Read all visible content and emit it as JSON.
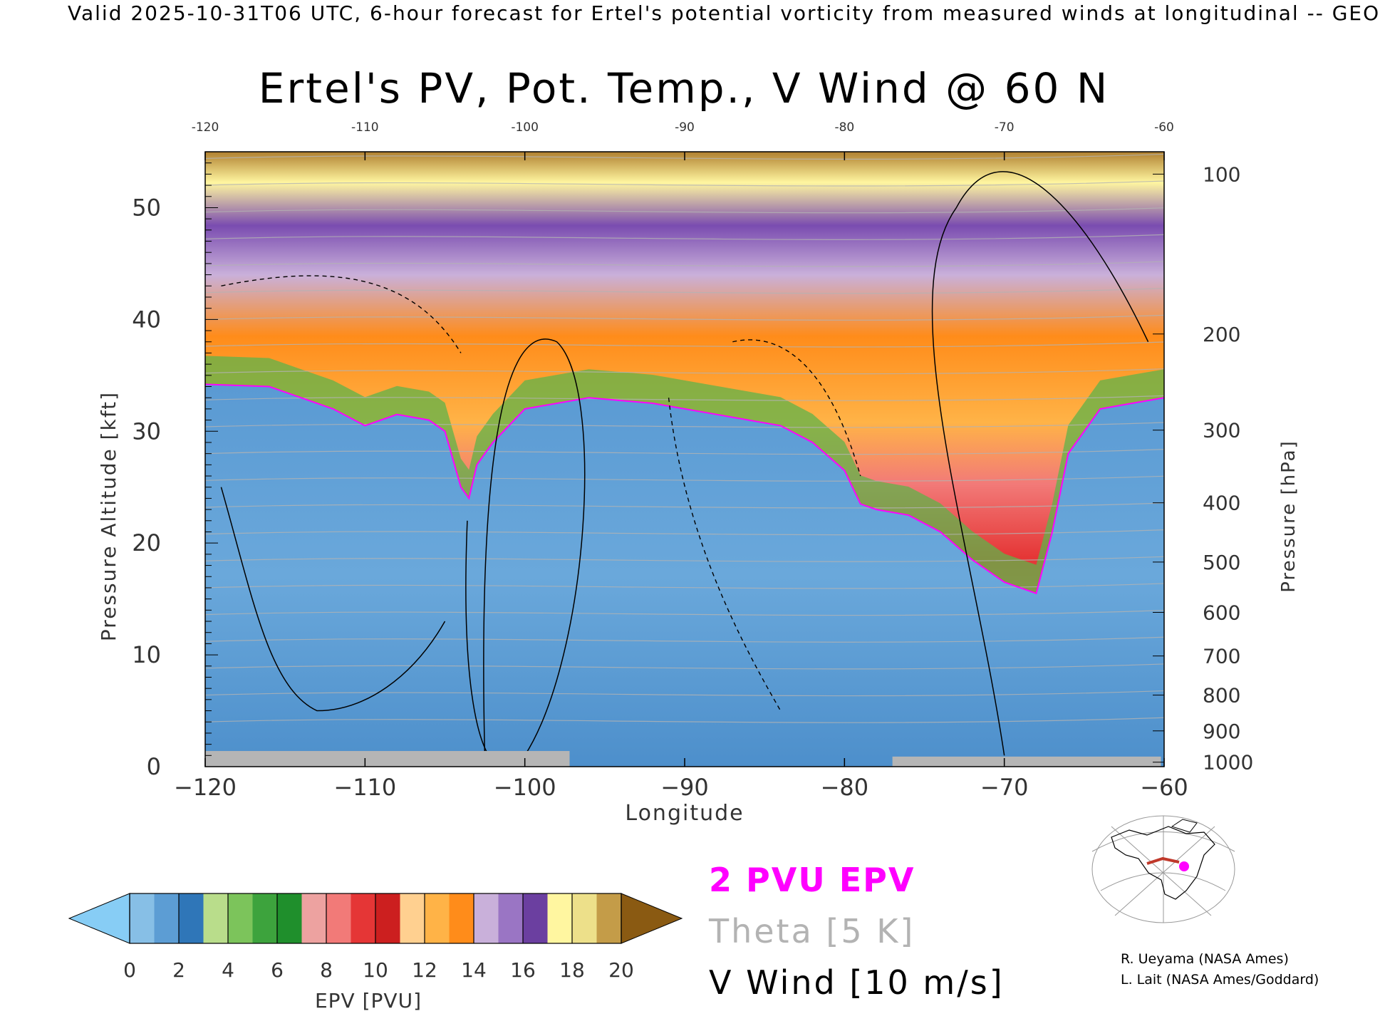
{
  "header": "Valid 2025-10-31T06 UTC, 6-hour forecast for Ertel's potential vorticity from measured winds at longitudinal -- GEO",
  "chart_data": {
    "type": "heatmap",
    "title": "Ertel's PV, Pot. Temp., V Wind @ 60 N",
    "xlabel": "Longitude",
    "ylabel": "Pressure Altitude [kft]",
    "y2label": "Pressure [hPa]",
    "xlim": [
      -120,
      -60
    ],
    "ylim": [
      0,
      55
    ],
    "x_ticks": [
      "-120",
      "-110",
      "-100",
      "-90",
      "-80",
      "-70",
      "-60"
    ],
    "top_ticks": [
      "-120",
      "-110",
      "-100",
      "-90",
      "-80",
      "-70",
      "-60"
    ],
    "y_ticks": [
      "0",
      "10",
      "20",
      "30",
      "40",
      "50"
    ],
    "pressure_ticks": [
      {
        "label": "100",
        "kft": 53.0
      },
      {
        "label": "200",
        "kft": 38.7
      },
      {
        "label": "300",
        "kft": 30.1
      },
      {
        "label": "400",
        "kft": 23.6
      },
      {
        "label": "500",
        "kft": 18.3
      },
      {
        "label": "600",
        "kft": 13.8
      },
      {
        "label": "700",
        "kft": 9.9
      },
      {
        "label": "800",
        "kft": 6.4
      },
      {
        "label": "900",
        "kft": 3.2
      },
      {
        "label": "1000",
        "kft": 0.4
      }
    ],
    "dynamopause_2pvu_kft": [
      [
        -120,
        34.2
      ],
      [
        -116,
        34.0
      ],
      [
        -114,
        33.0
      ],
      [
        -112,
        32.0
      ],
      [
        -110,
        30.5
      ],
      [
        -108,
        31.5
      ],
      [
        -106,
        31.0
      ],
      [
        -105,
        30.0
      ],
      [
        -104,
        25.0
      ],
      [
        -103.5,
        24.0
      ],
      [
        -103,
        27.0
      ],
      [
        -102,
        29.0
      ],
      [
        -100,
        32.0
      ],
      [
        -96,
        33.0
      ],
      [
        -92,
        32.5
      ],
      [
        -88,
        31.5
      ],
      [
        -84,
        30.5
      ],
      [
        -82,
        29.0
      ],
      [
        -80,
        26.5
      ],
      [
        -79,
        23.5
      ],
      [
        -78,
        23.0
      ],
      [
        -76,
        22.5
      ],
      [
        -74,
        21.0
      ],
      [
        -72,
        18.5
      ],
      [
        -70,
        16.5
      ],
      [
        -68,
        15.5
      ],
      [
        -67,
        21.0
      ],
      [
        -66,
        28.0
      ],
      [
        -64,
        32.0
      ],
      [
        -62,
        32.5
      ],
      [
        -60,
        33.0
      ]
    ],
    "colorbar": {
      "label": "EPV [PVU]",
      "ticks": [
        "0",
        "2",
        "4",
        "6",
        "8",
        "10",
        "12",
        "14",
        "16",
        "18",
        "20"
      ],
      "under_color": "#87cdf5",
      "over_color": "#8a5a12",
      "colors": [
        "#87bfe6",
        "#5c9dd4",
        "#2f76b8",
        "#b9dd8b",
        "#7cc45b",
        "#3da33d",
        "#1f8f2c",
        "#eda2a0",
        "#f27a78",
        "#e53636",
        "#cc1f1f",
        "#ffd090",
        "#ffb347",
        "#ff8c1a",
        "#c9b0da",
        "#9a75c4",
        "#6b3fa0",
        "#fff6a0",
        "#ede08a",
        "#c49c48"
      ]
    },
    "legend": [
      {
        "label": "2 PVU EPV",
        "color": "#ff00ff"
      },
      {
        "label": "Theta [5 K]",
        "color": "#b3b3b3"
      },
      {
        "label": "V Wind [10 m/s]",
        "color": "#000000"
      }
    ]
  },
  "credits": [
    "R. Ueyama (NASA Ames)",
    "L. Lait (NASA Ames/Goddard)"
  ]
}
